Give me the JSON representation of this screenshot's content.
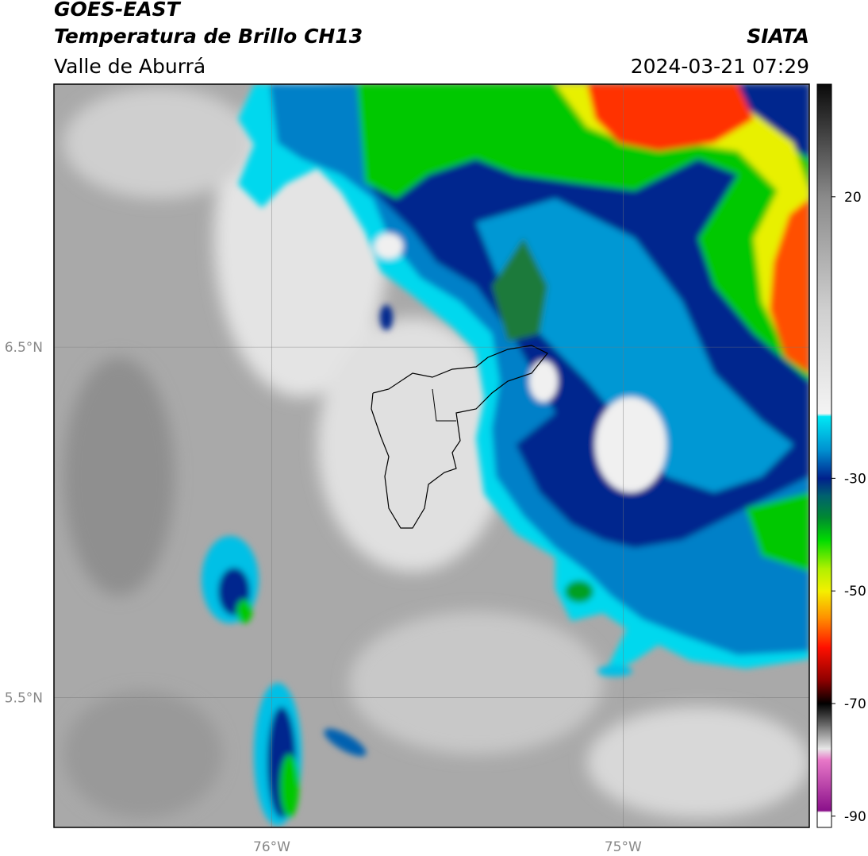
{
  "header": {
    "title": "GOES-EAST",
    "subtitle": "Temperatura de Brillo CH13",
    "region": "Valle de Aburrá",
    "source": "SIATA",
    "timestamp": "2024-03-21 07:29"
  },
  "map": {
    "lonlim": [
      -76.62,
      -74.47
    ],
    "latlim": [
      5.13,
      7.25
    ],
    "lonticks": [
      {
        "value": -76,
        "label": "76°W"
      },
      {
        "value": -75,
        "label": "75°W"
      }
    ],
    "latticks": [
      {
        "value": 6.5,
        "label": "6.5°N"
      },
      {
        "value": 5.5,
        "label": "5.5°N"
      }
    ],
    "grid": true
  },
  "colorbar": {
    "lim": [
      -92,
      40
    ],
    "ticks": [
      20,
      -30,
      -50,
      -70,
      -90
    ],
    "colormap": [
      {
        "value": 40,
        "color": "#0a0a0a"
      },
      {
        "value": 30,
        "color": "#4a4a4a"
      },
      {
        "value": 20,
        "color": "#8a8a8a"
      },
      {
        "value": 0,
        "color": "#cfcfcf"
      },
      {
        "value": -18.5,
        "color": "#f4f4f4"
      },
      {
        "value": -19,
        "color": "#00e8f4"
      },
      {
        "value": -25,
        "color": "#0090d0"
      },
      {
        "value": -30,
        "color": "#00208c"
      },
      {
        "value": -33,
        "color": "#006070"
      },
      {
        "value": -37,
        "color": "#008a30"
      },
      {
        "value": -41,
        "color": "#00dc00"
      },
      {
        "value": -46,
        "color": "#b0f000"
      },
      {
        "value": -50,
        "color": "#f4f000"
      },
      {
        "value": -55,
        "color": "#ff8a00"
      },
      {
        "value": -60,
        "color": "#ff1000"
      },
      {
        "value": -66,
        "color": "#8a0000"
      },
      {
        "value": -70,
        "color": "#000000"
      },
      {
        "value": -74,
        "color": "#707070"
      },
      {
        "value": -78,
        "color": "#e8e8e8"
      },
      {
        "value": -80,
        "color": "#e878c8"
      },
      {
        "value": -89,
        "color": "#8a108a"
      },
      {
        "value": -89.3,
        "color": "#ffffff"
      },
      {
        "value": -92,
        "color": "#ffffff"
      }
    ]
  }
}
